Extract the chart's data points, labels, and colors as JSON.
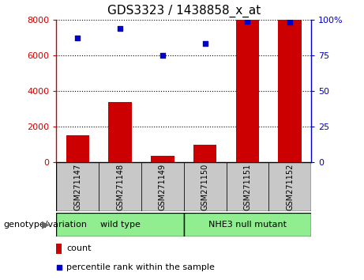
{
  "title": "GDS3323 / 1438858_x_at",
  "categories": [
    "GSM271147",
    "GSM271148",
    "GSM271149",
    "GSM271150",
    "GSM271151",
    "GSM271152"
  ],
  "counts": [
    1500,
    3400,
    350,
    1000,
    8000,
    8000
  ],
  "percentiles": [
    87,
    94,
    75,
    83,
    99,
    98
  ],
  "left_ylim": [
    0,
    8000
  ],
  "right_ylim": [
    0,
    100
  ],
  "left_yticks": [
    0,
    2000,
    4000,
    6000,
    8000
  ],
  "right_yticks": [
    0,
    25,
    50,
    75,
    100
  ],
  "right_yticklabels": [
    "0",
    "25",
    "50",
    "75",
    "100%"
  ],
  "bar_color": "#cc0000",
  "dot_color": "#0000cc",
  "group_label": "genotype/variation",
  "legend_count_label": "count",
  "legend_pct_label": "percentile rank within the sample",
  "tick_bg_color": "#c8c8c8",
  "green_color": "#90ee90",
  "title_fontsize": 11,
  "axis_fontsize": 8,
  "label_fontsize": 8,
  "cat_fontsize": 7,
  "group_fontsize": 8,
  "groups": [
    {
      "label": "wild type",
      "start": 0,
      "end": 2
    },
    {
      "label": "NHE3 null mutant",
      "start": 3,
      "end": 5
    }
  ]
}
